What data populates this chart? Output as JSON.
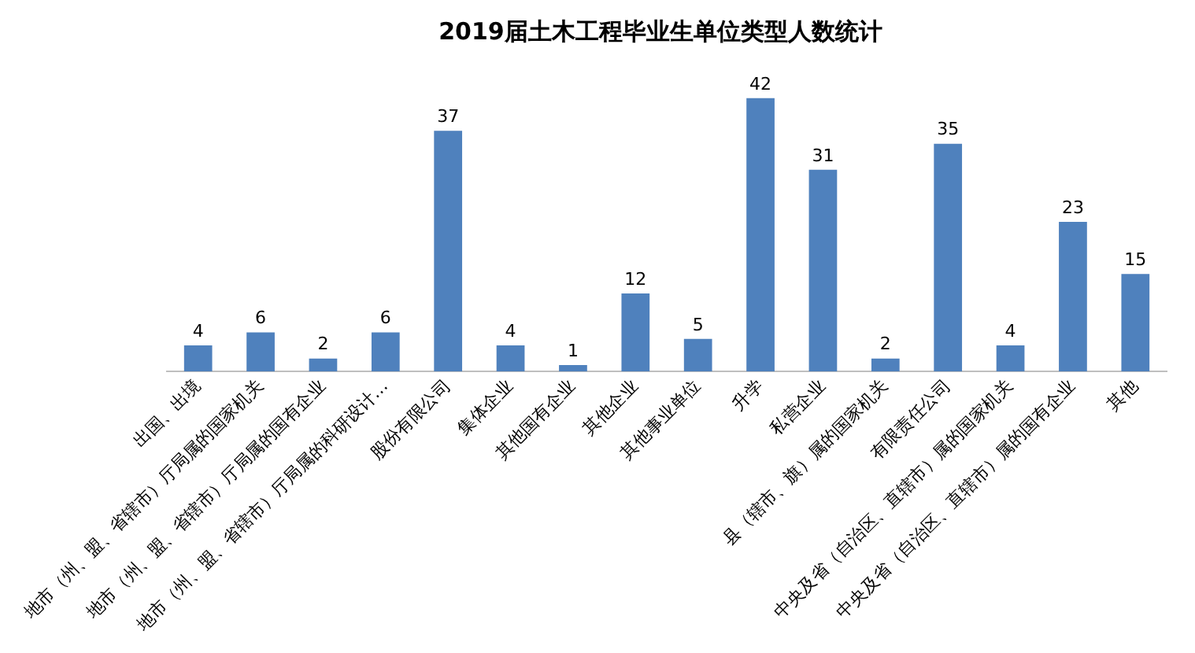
{
  "chart_data": {
    "type": "bar",
    "title": "2019届土木工程毕业生单位类型人数统计",
    "categories": [
      "出国、出境",
      "地市（州、盟、省辖市）厅局属的国家机关",
      "地市（州、盟、省辖市）厅局属的国有企业",
      "地市（州、盟、省辖市）厅局属的科研设计…",
      "股份有限公司",
      "集体企业",
      "其他国有企业",
      "其他企业",
      "其他事业单位",
      "升学",
      "私营企业",
      "县（辖市、旗）属的国家机关",
      "有限责任公司",
      "中央及省（自治区、直辖市）属的国家机关",
      "中央及省（自治区、直辖市）属的国有企业",
      "其他"
    ],
    "values": [
      4,
      6,
      2,
      6,
      37,
      4,
      1,
      12,
      5,
      42,
      31,
      2,
      35,
      4,
      23,
      15
    ],
    "color": "#4f81bd",
    "data_labels": true,
    "grid": false,
    "legend": false
  }
}
